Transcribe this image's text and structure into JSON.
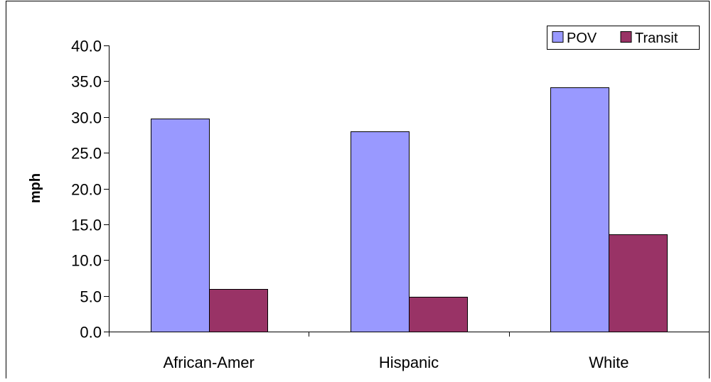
{
  "chart_data": {
    "type": "bar",
    "title": "",
    "xlabel": "",
    "ylabel": "mph",
    "categories": [
      "African-Amer",
      "Hispanic",
      "White"
    ],
    "series": [
      {
        "name": "POV",
        "values": [
          29.8,
          28.0,
          34.1
        ],
        "color": "#9999ff"
      },
      {
        "name": "Transit",
        "values": [
          6.0,
          4.9,
          13.6
        ],
        "color": "#993366"
      }
    ],
    "ylim": [
      0,
      40
    ],
    "ytick_step": 5,
    "ytick_labels": [
      "0.0",
      "5.0",
      "10.0",
      "15.0",
      "20.0",
      "25.0",
      "30.0",
      "35.0",
      "40.0"
    ],
    "grid": false,
    "legend_position": "top-right"
  }
}
